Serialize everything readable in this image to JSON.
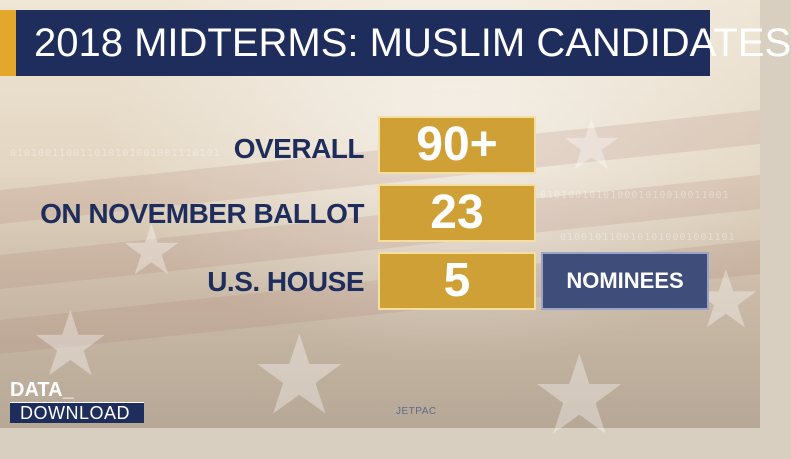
{
  "title": "2018 MIDTERMS: MUSLIM CANDIDATES",
  "rows": [
    {
      "label": "OVERALL",
      "value": "90+"
    },
    {
      "label": "ON NOVEMBER BALLOT",
      "value": "23"
    },
    {
      "label": "U.S. HOUSE",
      "value": "5"
    }
  ],
  "tag": "NOMINEES",
  "brand": {
    "line1": "DATA_",
    "line2": "DOWNLOAD"
  },
  "source": "JETPAC",
  "colors": {
    "navy": "#1f2d5c",
    "gold": "#cfa035",
    "accent": "#e2a72b",
    "slate": "#3f4d7a"
  }
}
